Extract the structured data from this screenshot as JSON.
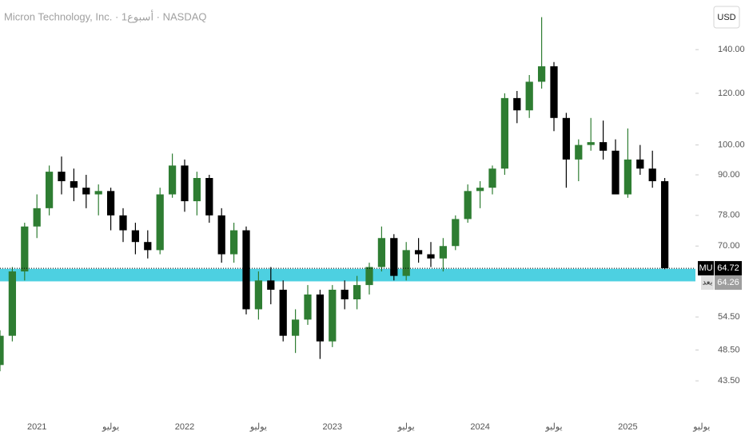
{
  "chart_data": {
    "type": "candlestick",
    "title": "Micron Technology, Inc. · 1أسبوع · NASDAQ",
    "currency": "USD",
    "log_scale": true,
    "up_color": "#2e7d32",
    "down_color": "#000000",
    "ylim": [
      39.1,
      166.8
    ],
    "yticks": [
      {
        "value": 43.5,
        "label": "43.50"
      },
      {
        "value": 48.5,
        "label": "48.50"
      },
      {
        "value": 54.5,
        "label": "54.50"
      },
      {
        "value": 70,
        "label": "70.00"
      },
      {
        "value": 78,
        "label": "78.00"
      },
      {
        "value": 90,
        "label": "90.00"
      },
      {
        "value": 100,
        "label": "100.00"
      },
      {
        "value": 120,
        "label": "120.00"
      },
      {
        "value": 140,
        "label": "140.00"
      }
    ],
    "xticks": [
      {
        "value": 3,
        "label": "2021"
      },
      {
        "value": 9,
        "label": "يوليو"
      },
      {
        "value": 15,
        "label": "2022"
      },
      {
        "value": 21,
        "label": "يوليو"
      },
      {
        "value": 27,
        "label": "2023"
      },
      {
        "value": 33,
        "label": "يوليو"
      },
      {
        "value": 39,
        "label": "2024"
      },
      {
        "value": 45,
        "label": "يوليو"
      },
      {
        "value": 51,
        "label": "2025"
      },
      {
        "value": 57,
        "label": "يوليو"
      }
    ],
    "open": [
      46,
      51,
      64,
      75,
      80,
      91,
      88,
      86,
      84,
      85,
      78,
      74,
      71,
      69,
      84,
      93,
      82,
      89,
      78,
      68,
      74,
      56,
      62,
      60,
      51,
      54,
      59,
      50,
      60,
      58,
      61,
      65,
      72,
      63,
      69,
      68,
      67,
      70,
      77,
      85,
      86,
      92,
      118,
      113,
      125,
      132,
      110,
      95,
      100,
      101,
      98,
      84,
      95,
      92,
      88
    ],
    "high": [
      52,
      65,
      76,
      84,
      93,
      96,
      92,
      90,
      87,
      86,
      80,
      76,
      74,
      86,
      97,
      95,
      91,
      90,
      80,
      76,
      75,
      64,
      65,
      62,
      56,
      61,
      60,
      61,
      62,
      63,
      66,
      75,
      73,
      71,
      72,
      71,
      72,
      78,
      87,
      88,
      93,
      120,
      121,
      128,
      157,
      134,
      112,
      102,
      110,
      109,
      102,
      106,
      100,
      98,
      89
    ],
    "low": [
      45,
      50,
      62,
      72,
      78,
      84,
      82,
      80,
      78,
      74,
      71,
      68,
      67,
      68,
      83,
      79,
      78,
      76,
      66,
      66,
      55,
      54,
      57,
      50,
      48,
      53,
      47,
      49,
      56,
      56,
      59,
      64,
      62,
      62,
      66,
      65,
      64,
      69,
      76,
      80,
      84,
      90,
      108,
      110,
      122,
      105,
      86,
      88,
      98,
      95,
      84,
      83,
      90,
      86,
      64.5
    ],
    "close": [
      51,
      64,
      75,
      80,
      91,
      88,
      86,
      84,
      85,
      78,
      74,
      71,
      69,
      84,
      93,
      82,
      89,
      78,
      68,
      74,
      56,
      62,
      60,
      51,
      54,
      59,
      50,
      60,
      58,
      61,
      65,
      72,
      63,
      69,
      68,
      67,
      70,
      77,
      85,
      86,
      92,
      118,
      113,
      125,
      132,
      110,
      95,
      100,
      101,
      98,
      84,
      95,
      92,
      88,
      64.72
    ],
    "zone": {
      "low": 61.8,
      "high": 64.6,
      "color": "#4dd0e1"
    },
    "last_price": {
      "symbol": "MU",
      "value": 64.72,
      "label": "64.72"
    },
    "post_market": {
      "tag": "بعد",
      "value": 64.26,
      "label": "64.26"
    }
  }
}
